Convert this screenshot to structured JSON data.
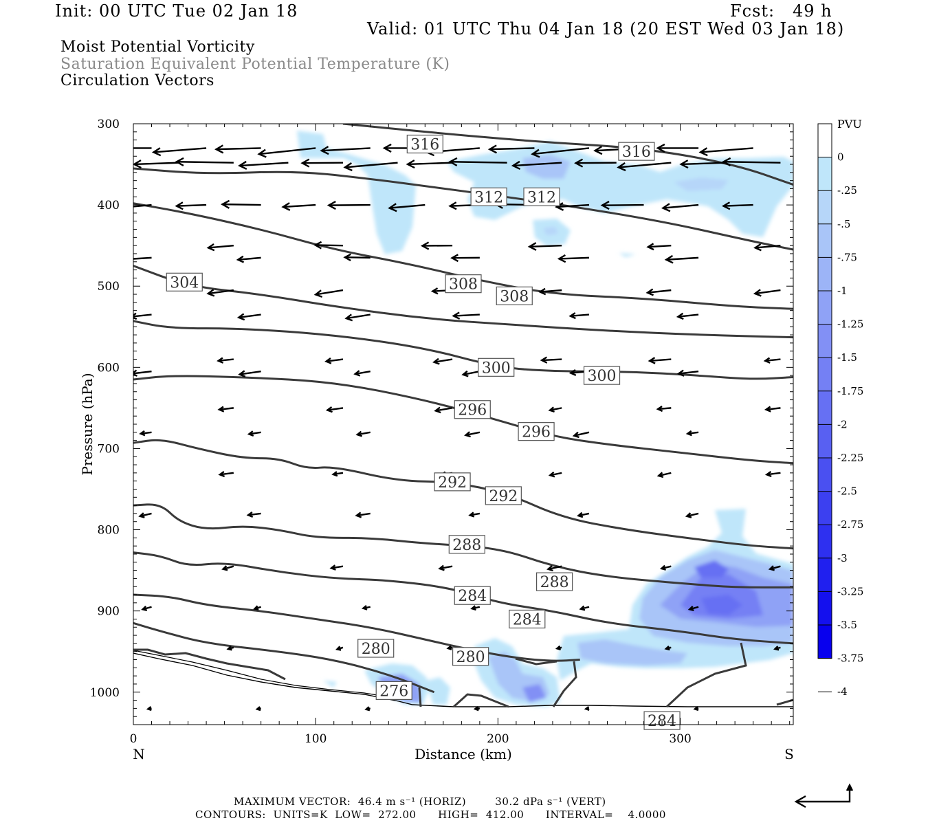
{
  "header": {
    "init": "Init: 00 UTC Tue 02 Jan 18",
    "fcst": "Fcst:   49 h",
    "valid": "Valid: 01 UTC Thu 04 Jan 18 (20 EST Wed 03 Jan 18)"
  },
  "titles": {
    "line1": "Moist Potential Vorticity",
    "line2": "Saturation Equivalent Potential Temperature (K)",
    "line3": "Circulation Vectors"
  },
  "footer": {
    "line1": "MAXIMUM VECTOR:  46.4 m s⁻¹ (HORIZ)        30.2 dPa s⁻¹ (VERT)",
    "line2": "CONTOURS:  UNITS=K  LOW=  272.00      HIGH=  412.00      INTERVAL=    4.0000"
  },
  "chart_data": {
    "type": "cross-section",
    "xlabel": "Distance (km)",
    "ylabel": "Pressure (hPa)",
    "x_ticks": [
      "0",
      "100",
      "200",
      "300"
    ],
    "y_ticks": [
      "300",
      "400",
      "500",
      "600",
      "700",
      "800",
      "900",
      "1000"
    ],
    "xlim": [
      0,
      362
    ],
    "ylim": [
      300,
      1040
    ],
    "x_end_labels": {
      "left": "N",
      "right": "S"
    },
    "colorbar": {
      "unit": "PVU",
      "levels": [
        "0",
        "-.25",
        "-.5",
        "-.75",
        "-1",
        "-1.25",
        "-1.5",
        "-1.75",
        "-2",
        "-2.25",
        "-2.5",
        "-2.75",
        "-3",
        "-3.25",
        "-3.5",
        "-3.75",
        "-4"
      ],
      "colors": [
        "#ffffff",
        "#ffffff",
        "#bfe6fa",
        "#b6d6f9",
        "#a9c5f8",
        "#9cb4f7",
        "#8fa2f6",
        "#8290f5",
        "#7480f4",
        "#6670f3",
        "#5860f2",
        "#4a50f1",
        "#3c40f0",
        "#2e30f0",
        "#2020ef",
        "#1410ee",
        "#0800ee"
      ]
    },
    "contour_labels": [
      {
        "text": "316",
        "x": 160,
        "p": 325
      },
      {
        "text": "316",
        "x": 276,
        "p": 334
      },
      {
        "text": "312",
        "x": 195,
        "p": 390
      },
      {
        "text": "312",
        "x": 224,
        "p": 390
      },
      {
        "text": "304",
        "x": 28,
        "p": 495
      },
      {
        "text": "308",
        "x": 181,
        "p": 497
      },
      {
        "text": "308",
        "x": 209,
        "p": 512
      },
      {
        "text": "300",
        "x": 199,
        "p": 600
      },
      {
        "text": "300",
        "x": 257,
        "p": 610
      },
      {
        "text": "296",
        "x": 186,
        "p": 652
      },
      {
        "text": "296",
        "x": 221,
        "p": 679
      },
      {
        "text": "292",
        "x": 175,
        "p": 741
      },
      {
        "text": "292",
        "x": 203,
        "p": 758
      },
      {
        "text": "288",
        "x": 183,
        "p": 818
      },
      {
        "text": "288",
        "x": 231,
        "p": 864
      },
      {
        "text": "284",
        "x": 186,
        "p": 881
      },
      {
        "text": "284",
        "x": 216,
        "p": 910
      },
      {
        "text": "284",
        "x": 290,
        "p": 1035
      },
      {
        "text": "280",
        "x": 133,
        "p": 946
      },
      {
        "text": "280",
        "x": 185,
        "p": 956
      },
      {
        "text": "276",
        "x": 143,
        "p": 998
      }
    ],
    "contours": [
      {
        "level": 316,
        "points": [
          [
            115,
            300
          ],
          [
            160,
            310
          ],
          [
            220,
            322
          ],
          [
            280,
            330
          ],
          [
            330,
            350
          ],
          [
            362,
            375
          ]
        ]
      },
      {
        "level": 312,
        "points": [
          [
            0,
            355
          ],
          [
            40,
            362
          ],
          [
            90,
            358
          ],
          [
            130,
            368
          ],
          [
            165,
            378
          ],
          [
            230,
            398
          ],
          [
            290,
            420
          ],
          [
            340,
            445
          ],
          [
            362,
            455
          ]
        ]
      },
      {
        "level": 308,
        "points": [
          [
            0,
            398
          ],
          [
            30,
            410
          ],
          [
            70,
            430
          ],
          [
            110,
            455
          ],
          [
            150,
            472
          ],
          [
            190,
            493
          ],
          [
            230,
            510
          ],
          [
            280,
            515
          ],
          [
            330,
            525
          ],
          [
            362,
            528
          ]
        ]
      },
      {
        "level": 304,
        "points": [
          [
            0,
            475
          ],
          [
            30,
            500
          ],
          [
            70,
            510
          ],
          [
            110,
            525
          ],
          [
            160,
            540
          ],
          [
            210,
            548
          ],
          [
            260,
            555
          ],
          [
            310,
            560
          ],
          [
            362,
            563
          ]
        ]
      },
      {
        "level": 300,
        "points": [
          [
            0,
            543
          ],
          [
            20,
            552
          ],
          [
            60,
            552
          ],
          [
            110,
            560
          ],
          [
            160,
            576
          ],
          [
            200,
            600
          ],
          [
            230,
            605
          ],
          [
            270,
            605
          ],
          [
            310,
            610
          ],
          [
            340,
            615
          ],
          [
            362,
            612
          ]
        ]
      },
      {
        "level": 296,
        "points": [
          [
            0,
            615
          ],
          [
            20,
            610
          ],
          [
            60,
            612
          ],
          [
            110,
            618
          ],
          [
            160,
            640
          ],
          [
            200,
            665
          ],
          [
            230,
            685
          ],
          [
            260,
            695
          ],
          [
            300,
            705
          ],
          [
            340,
            715
          ],
          [
            362,
            718
          ]
        ]
      },
      {
        "level": 292,
        "points": [
          [
            0,
            693
          ],
          [
            15,
            688
          ],
          [
            35,
            700
          ],
          [
            60,
            712
          ],
          [
            80,
            712
          ],
          [
            95,
            725
          ],
          [
            110,
            722
          ],
          [
            145,
            740
          ],
          [
            175,
            741
          ],
          [
            205,
            755
          ],
          [
            235,
            785
          ],
          [
            270,
            800
          ],
          [
            310,
            812
          ],
          [
            340,
            820
          ],
          [
            362,
            823
          ]
        ]
      },
      {
        "level": 288,
        "points": [
          [
            0,
            770
          ],
          [
            15,
            768
          ],
          [
            25,
            790
          ],
          [
            40,
            800
          ],
          [
            60,
            795
          ],
          [
            80,
            800
          ],
          [
            100,
            810
          ],
          [
            130,
            810
          ],
          [
            160,
            817
          ],
          [
            200,
            822
          ],
          [
            230,
            845
          ],
          [
            260,
            858
          ],
          [
            300,
            866
          ],
          [
            330,
            871
          ],
          [
            362,
            871
          ]
        ]
      },
      {
        "level": 284,
        "points": [
          [
            0,
            828
          ],
          [
            15,
            832
          ],
          [
            30,
            845
          ],
          [
            50,
            840
          ],
          [
            80,
            852
          ],
          [
            110,
            860
          ],
          [
            140,
            862
          ],
          [
            175,
            872
          ],
          [
            200,
            890
          ],
          [
            230,
            900
          ],
          [
            260,
            915
          ],
          [
            300,
            925
          ],
          [
            330,
            935
          ],
          [
            362,
            940
          ]
        ]
      },
      {
        "level": 280,
        "points": [
          [
            0,
            880
          ],
          [
            20,
            882
          ],
          [
            40,
            893
          ],
          [
            70,
            900
          ],
          [
            100,
            910
          ],
          [
            130,
            920
          ],
          [
            160,
            935
          ],
          [
            185,
            948
          ],
          [
            210,
            958
          ],
          [
            230,
            962
          ],
          [
            245,
            960
          ]
        ]
      },
      {
        "level": 276,
        "points": [
          [
            0,
            915
          ],
          [
            15,
            925
          ],
          [
            40,
            940
          ],
          [
            80,
            950
          ],
          [
            110,
            960
          ],
          [
            140,
            978
          ],
          [
            165,
            1000
          ]
        ]
      }
    ]
  }
}
